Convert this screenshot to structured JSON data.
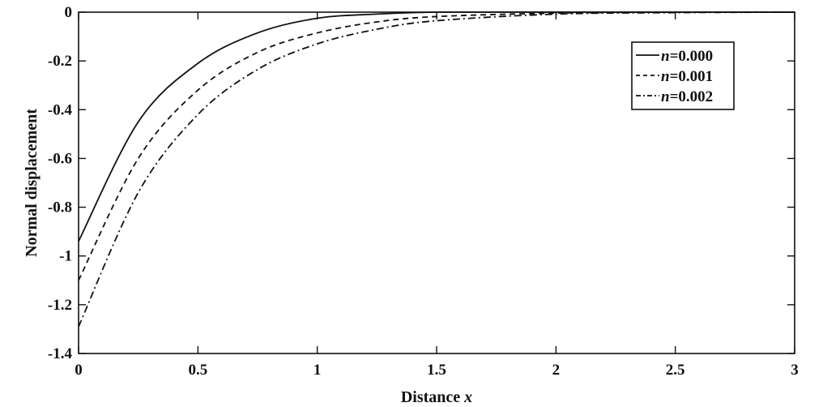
{
  "chart_data": {
    "type": "line",
    "xlabel": "Distance",
    "xlabel_var": "x",
    "ylabel": "Normal displacement",
    "xlim": [
      0,
      3
    ],
    "ylim": [
      -1.4,
      0
    ],
    "x_ticks": [
      "0",
      "0.5",
      "1",
      "1.5",
      "2",
      "2.5",
      "3"
    ],
    "y_ticks": [
      "0",
      "-0.2",
      "-0.4",
      "-0.6",
      "-0.8",
      "-1",
      "-1.2",
      "-1.4"
    ],
    "grid": false,
    "legend_position": "top-right",
    "x": [
      0,
      0.25,
      0.5,
      0.75,
      1.0,
      1.25,
      1.5,
      2.0,
      2.5,
      3.0
    ],
    "series": [
      {
        "name": "n=0.000",
        "name_var": "n",
        "name_value": "=0.000",
        "style": "solid",
        "values": [
          -0.94,
          -0.45,
          -0.21,
          -0.085,
          -0.025,
          -0.008,
          0.0,
          0.0,
          0.0,
          0.0
        ]
      },
      {
        "name": "n=0.001",
        "name_var": "n",
        "name_value": "=0.001",
        "style": "dashed",
        "values": [
          -1.1,
          -0.6,
          -0.32,
          -0.165,
          -0.085,
          -0.04,
          -0.018,
          -0.004,
          0.0,
          0.0
        ]
      },
      {
        "name": "n=0.002",
        "name_var": "n",
        "name_value": "=0.002",
        "style": "dashdot",
        "values": [
          -1.29,
          -0.74,
          -0.42,
          -0.235,
          -0.13,
          -0.07,
          -0.035,
          -0.008,
          -0.002,
          0.0
        ]
      }
    ]
  }
}
